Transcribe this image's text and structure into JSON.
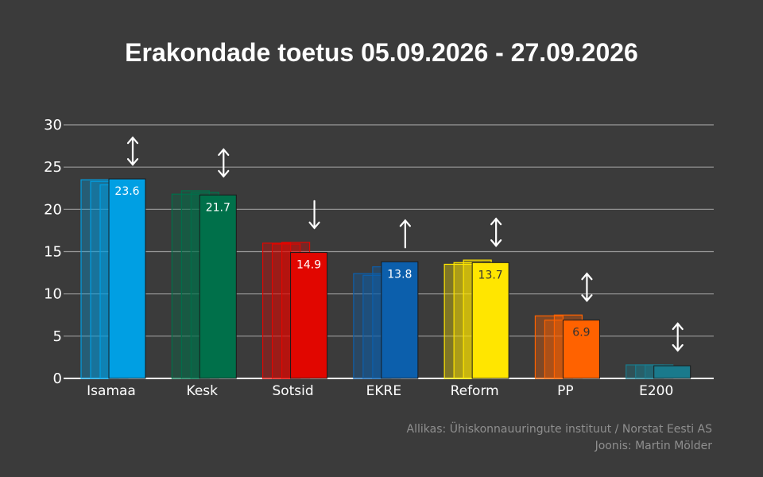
{
  "chart_data": {
    "type": "bar",
    "title": "Erakondade toetus 05.09.2026 - 27.09.2026",
    "xlabel": "",
    "ylabel": "",
    "ylim": [
      0,
      30
    ],
    "yticks": [
      "0",
      "5",
      "10",
      "15",
      "20",
      "25",
      "30"
    ],
    "grid": true,
    "categories": [
      "Isamaa",
      "Kesk",
      "Sotsid",
      "EKRE",
      "Reform",
      "PP",
      "E200"
    ],
    "values": [
      23.6,
      21.7,
      14.9,
      13.8,
      13.7,
      6.9,
      1.5
    ],
    "value_labels": [
      "23.6",
      "21.7",
      "14.9",
      "13.8",
      "13.7",
      "6.9",
      ""
    ],
    "previous_values": [
      [
        23.5,
        23.3,
        22.9
      ],
      [
        21.8,
        22.2,
        22.0
      ],
      [
        16.0,
        15.9,
        16.1
      ],
      [
        12.4,
        12.2,
        13.2
      ],
      [
        13.5,
        13.7,
        14.0
      ],
      [
        7.4,
        6.9,
        7.5
      ],
      [
        1.6,
        1.6,
        1.6
      ]
    ],
    "trend_arrows": [
      "both",
      "both",
      "down",
      "up",
      "both",
      "both",
      "both"
    ],
    "colors": [
      "#009fe3",
      "#00704a",
      "#e10600",
      "#0c5fac",
      "#ffe600",
      "#ff6200",
      "#1a7a8c"
    ]
  },
  "credits": {
    "source": "Allikas: Ühiskonnauuringute instituut / Norstat Eesti AS",
    "author": "Joonis: Martin Mölder"
  }
}
